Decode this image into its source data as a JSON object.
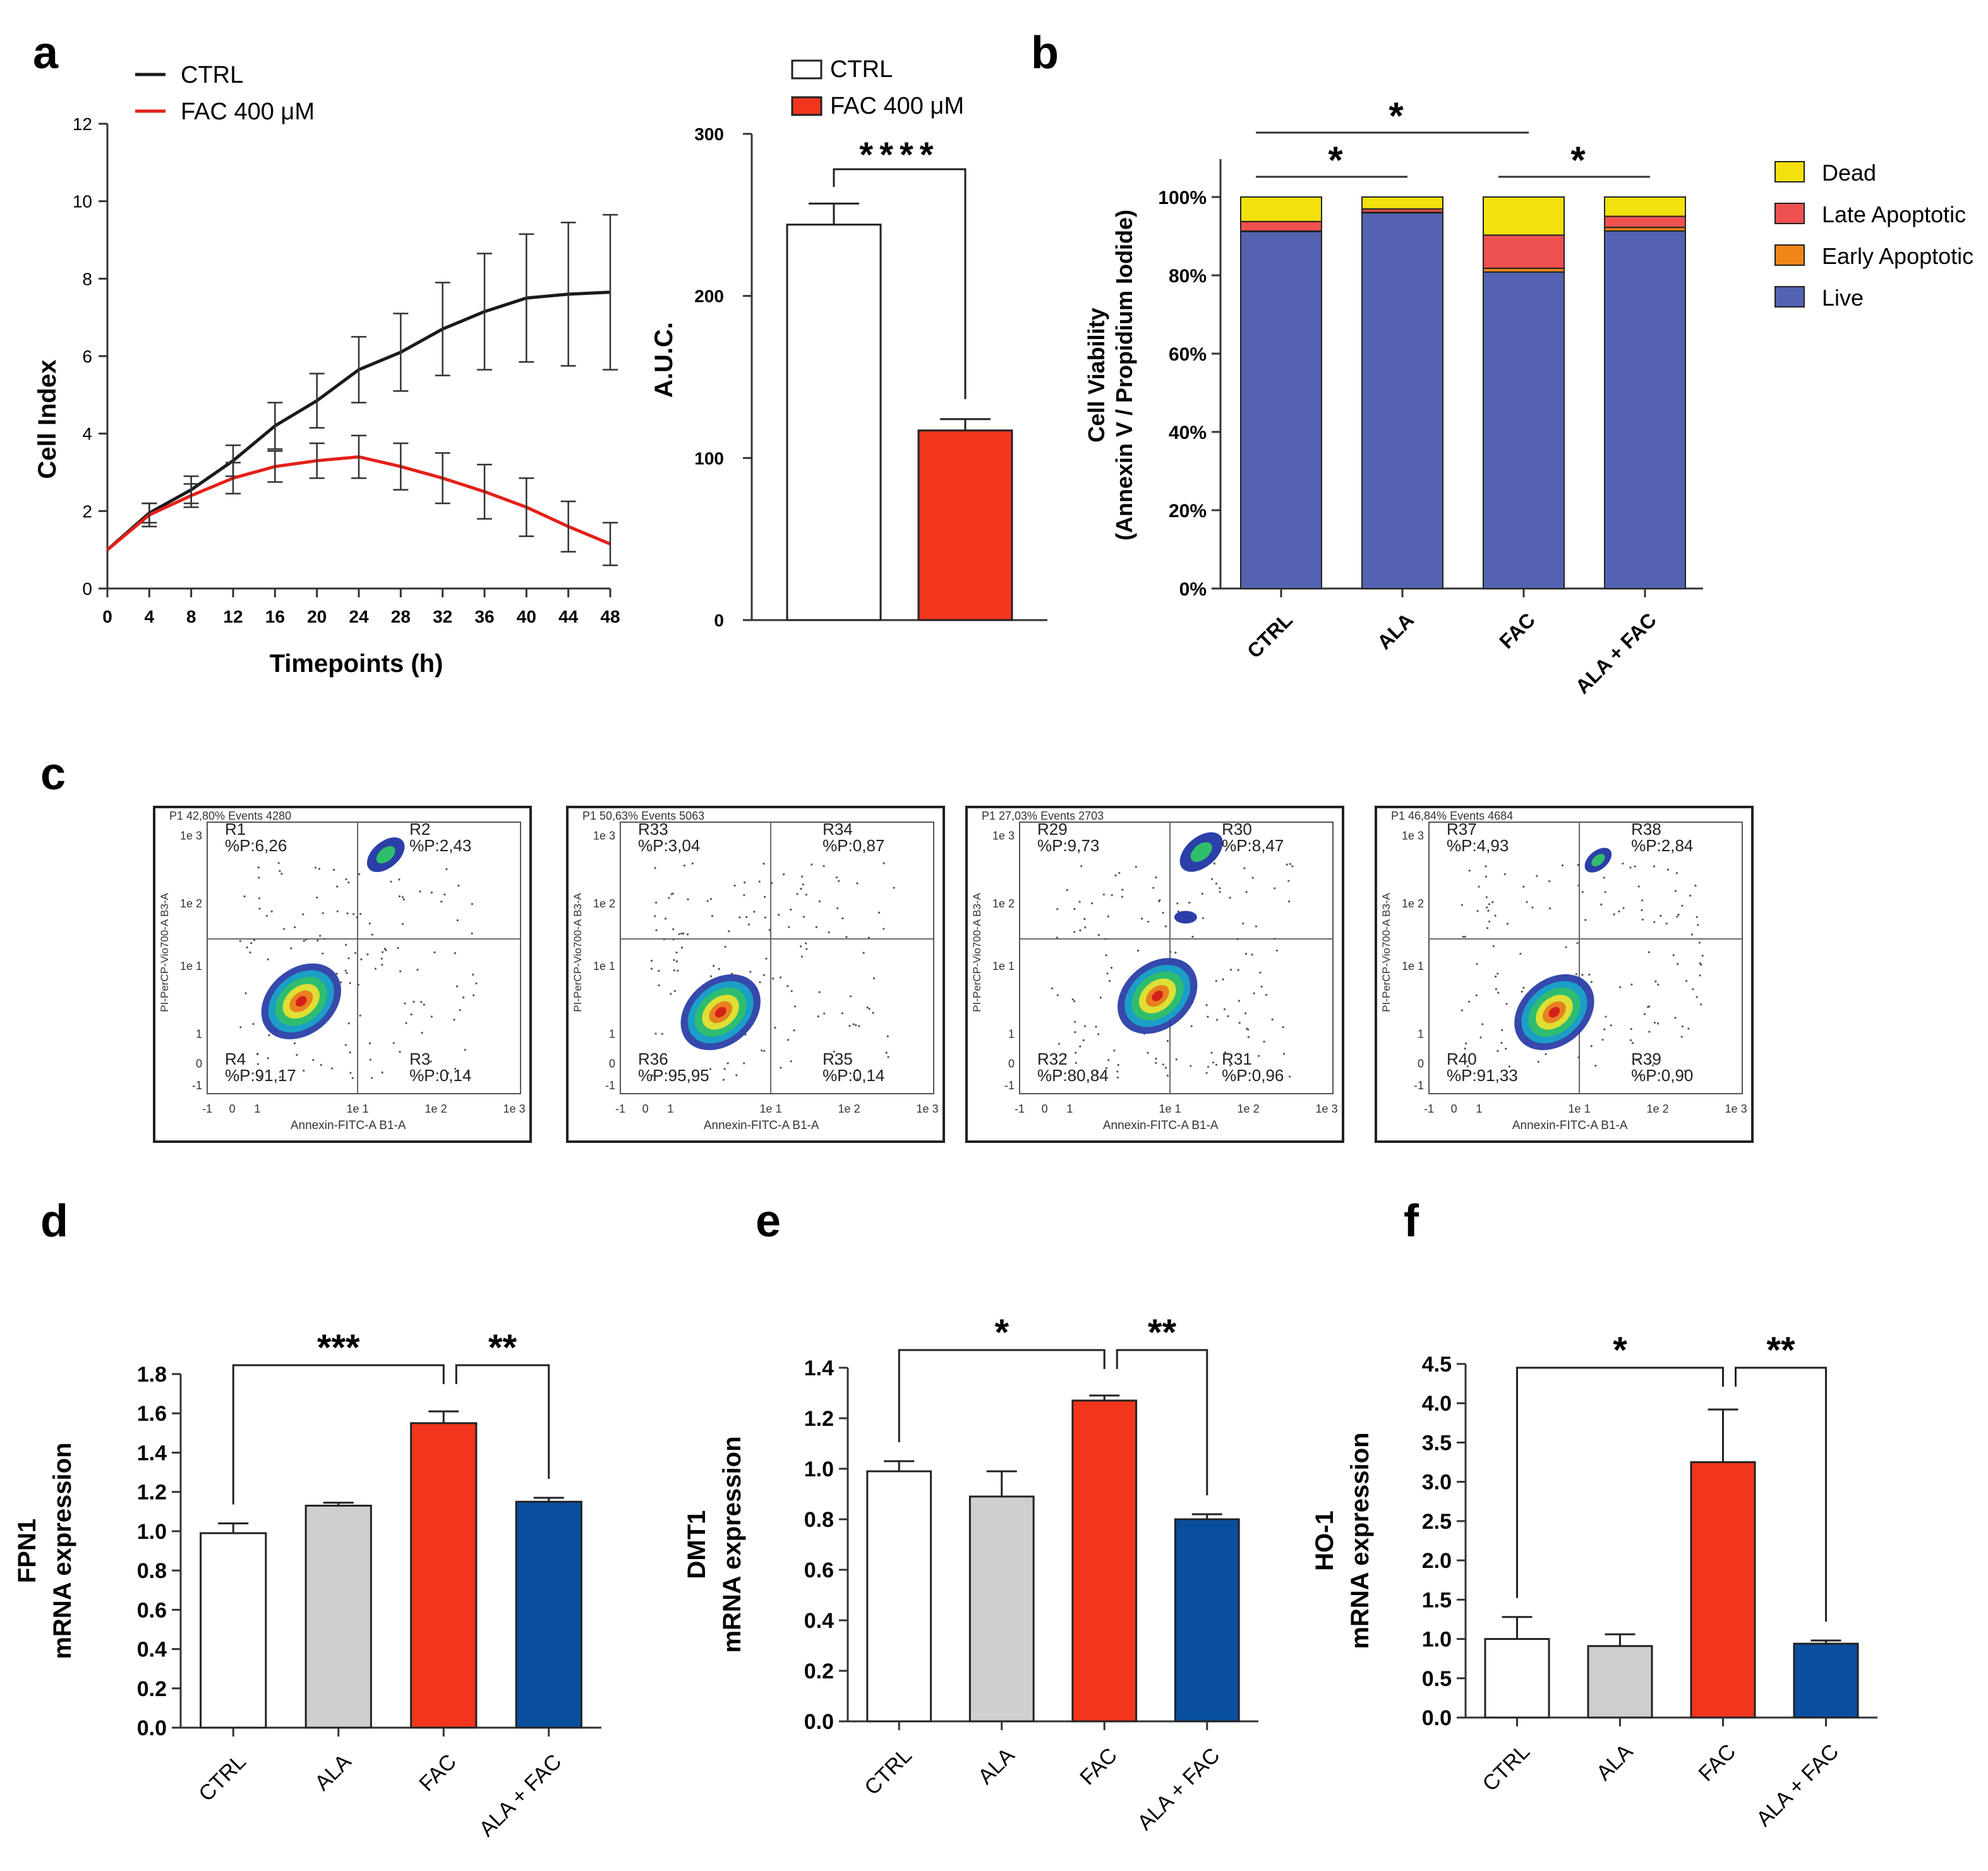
{
  "figure": {
    "panel_labels": {
      "a": "a",
      "b": "b",
      "c": "c",
      "d": "d",
      "e": "e",
      "f": "f"
    },
    "colors": {
      "black": "#1a1a1a",
      "red": "#e32018",
      "bar_red": "#f2361e",
      "grey": "#cfcfcf",
      "blue": "#0a4ea0",
      "live": "#5363b2",
      "early": "#f08518",
      "late": "#ef5050",
      "dead": "#f2e10c"
    }
  },
  "chart_data": [
    {
      "id": "a_line",
      "type": "line",
      "xlabel": "Timepoints (h)",
      "ylabel": "Cell Index",
      "xlim": [
        0,
        48
      ],
      "ylim": [
        0,
        12
      ],
      "x_ticks": [
        "0",
        "4",
        "8",
        "12",
        "16",
        "20",
        "24",
        "28",
        "32",
        "36",
        "40",
        "44",
        "48"
      ],
      "y_ticks": [
        "0",
        "2",
        "4",
        "6",
        "8",
        "10",
        "12"
      ],
      "x": [
        0,
        4,
        8,
        12,
        16,
        20,
        24,
        28,
        32,
        36,
        40,
        44,
        48
      ],
      "series": [
        {
          "name": "CTRL",
          "color": "#1a1a1a",
          "values": [
            1.0,
            1.95,
            2.55,
            3.3,
            4.2,
            4.85,
            5.65,
            6.1,
            6.7,
            7.15,
            7.5,
            7.6,
            7.65
          ],
          "errors": [
            0,
            0.25,
            0.35,
            0.4,
            0.6,
            0.7,
            0.85,
            1.0,
            1.2,
            1.5,
            1.65,
            1.85,
            2.0
          ]
        },
        {
          "name": "FAC 400 μM",
          "color": "#e32018",
          "values": [
            1.0,
            1.9,
            2.4,
            2.85,
            3.15,
            3.3,
            3.4,
            3.15,
            2.85,
            2.5,
            2.1,
            1.6,
            1.15
          ],
          "errors": [
            0,
            0.3,
            0.3,
            0.4,
            0.4,
            0.45,
            0.55,
            0.6,
            0.65,
            0.7,
            0.75,
            0.65,
            0.55
          ]
        }
      ]
    },
    {
      "id": "a_auc",
      "type": "bar",
      "ylabel": "A.U.C.",
      "ylim": [
        0,
        300
      ],
      "y_ticks": [
        "0",
        "100",
        "200",
        "300"
      ],
      "categories": [
        "CTRL",
        "FAC 400 μM"
      ],
      "values": [
        244,
        117
      ],
      "errors": [
        13,
        7
      ],
      "colors": [
        "#ffffff",
        "#f2361e"
      ],
      "significance": "****"
    },
    {
      "id": "b",
      "type": "bar",
      "stacked": true,
      "ylabel": "Cell Viability",
      "ylabel2": "(Annexin V / Propidium Iodide)",
      "y_ticks": [
        "0%",
        "20%",
        "40%",
        "60%",
        "80%",
        "100%"
      ],
      "categories": [
        "CTRL",
        "ALA",
        "FAC",
        "ALA + FAC"
      ],
      "series": [
        {
          "name": "Live",
          "color": "#5363b2",
          "values": [
            91.17,
            95.95,
            80.84,
            91.33
          ]
        },
        {
          "name": "Early Apoptotic",
          "color": "#f08518",
          "values": [
            0.14,
            0.14,
            0.96,
            0.9
          ]
        },
        {
          "name": "Late Apoptotic",
          "color": "#ef5050",
          "values": [
            2.43,
            0.87,
            8.47,
            2.84
          ]
        },
        {
          "name": "Dead",
          "color": "#f2e10c",
          "values": [
            6.26,
            3.04,
            9.73,
            4.93
          ]
        }
      ],
      "legend_order": [
        "Dead",
        "Late Apoptotic",
        "Early Apoptotic",
        "Live"
      ],
      "significance": [
        {
          "from": 0,
          "to": 2,
          "label": "*"
        },
        {
          "from": 0,
          "to": 1,
          "label": "*"
        },
        {
          "from": 2,
          "to": 3,
          "label": "*"
        }
      ]
    },
    {
      "id": "c",
      "type": "scatter",
      "plots": [
        {
          "header": "P1 42,80% Events 4280",
          "q": [
            {
              "name": "R1",
              "val": "%P:6,26"
            },
            {
              "name": "R2",
              "val": "%P:2,43"
            },
            {
              "name": "R3",
              "val": "%P:0,14"
            },
            {
              "name": "R4",
              "val": "%P:91,17"
            }
          ]
        },
        {
          "header": "P1 50,63% Events 5063",
          "q": [
            {
              "name": "R33",
              "val": "%P:3,04"
            },
            {
              "name": "R34",
              "val": "%P:0,87"
            },
            {
              "name": "R35",
              "val": "%P:0,14"
            },
            {
              "name": "R36",
              "val": "%P:95,95"
            }
          ]
        },
        {
          "header": "P1 27,03% Events 2703",
          "q": [
            {
              "name": "R29",
              "val": "%P:9,73"
            },
            {
              "name": "R30",
              "val": "%P:8,47"
            },
            {
              "name": "R31",
              "val": "%P:0,96"
            },
            {
              "name": "R32",
              "val": "%P:80,84"
            }
          ]
        },
        {
          "header": "P1 46,84% Events 4684",
          "q": [
            {
              "name": "R37",
              "val": "%P:4,93"
            },
            {
              "name": "R38",
              "val": "%P:2,84"
            },
            {
              "name": "R39",
              "val": "%P:0,90"
            },
            {
              "name": "R40",
              "val": "%P:91,33"
            }
          ]
        }
      ],
      "xlabel": "Annexin-FITC-A B1-A",
      "ylabel": "PI-PerCP-Vio700-A B3-A",
      "x_ticks": [
        "-1",
        "0",
        "1",
        "1e 1",
        "1e 2",
        "1e 3"
      ],
      "y_ticks": [
        "1e 3",
        "1e 2",
        "1e 1",
        "1",
        "0",
        "-1"
      ]
    },
    {
      "id": "d",
      "type": "bar",
      "ylabel": "FPN1",
      "ylabel2": "mRNA expression",
      "ylim": [
        0,
        1.8
      ],
      "y_ticks": [
        "0.0",
        "0.2",
        "0.4",
        "0.6",
        "0.8",
        "1.0",
        "1.2",
        "1.4",
        "1.6",
        "1.8"
      ],
      "categories": [
        "CTRL",
        "ALA",
        "FAC",
        "ALA + FAC"
      ],
      "values": [
        0.99,
        1.13,
        1.55,
        1.15
      ],
      "errors": [
        0.05,
        0.015,
        0.06,
        0.02
      ],
      "colors": [
        "#ffffff",
        "#cfcfcf",
        "#f2361e",
        "#0a4ea0"
      ],
      "significance": [
        {
          "from": 0,
          "to": 2,
          "label": "***"
        },
        {
          "from": 2,
          "to": 3,
          "label": "**"
        }
      ]
    },
    {
      "id": "e",
      "type": "bar",
      "ylabel": "DMT1",
      "ylabel2": "mRNA expression",
      "ylim": [
        0,
        1.4
      ],
      "y_ticks": [
        "0.0",
        "0.2",
        "0.4",
        "0.6",
        "0.8",
        "1.0",
        "1.2",
        "1.4"
      ],
      "categories": [
        "CTRL",
        "ALA",
        "FAC",
        "ALA + FAC"
      ],
      "values": [
        0.99,
        0.89,
        1.27,
        0.8
      ],
      "errors": [
        0.04,
        0.1,
        0.02,
        0.02
      ],
      "colors": [
        "#ffffff",
        "#cfcfcf",
        "#f2361e",
        "#0a4ea0"
      ],
      "significance": [
        {
          "from": 0,
          "to": 2,
          "label": "*"
        },
        {
          "from": 2,
          "to": 3,
          "label": "**"
        }
      ]
    },
    {
      "id": "f",
      "type": "bar",
      "ylabel": "HO-1",
      "ylabel2": "mRNA expression",
      "ylim": [
        0,
        4.5
      ],
      "y_ticks": [
        "0.0",
        "0.5",
        "1.0",
        "1.5",
        "2.0",
        "2.5",
        "3.0",
        "3.5",
        "4.0",
        "4.5"
      ],
      "categories": [
        "CTRL",
        "ALA",
        "FAC",
        "ALA + FAC"
      ],
      "values": [
        1.0,
        0.91,
        3.25,
        0.94
      ],
      "errors": [
        0.28,
        0.15,
        0.67,
        0.04
      ],
      "colors": [
        "#ffffff",
        "#cfcfcf",
        "#f2361e",
        "#0a4ea0"
      ],
      "significance": [
        {
          "from": 0,
          "to": 2,
          "label": "*"
        },
        {
          "from": 2,
          "to": 3,
          "label": "**"
        }
      ]
    }
  ]
}
